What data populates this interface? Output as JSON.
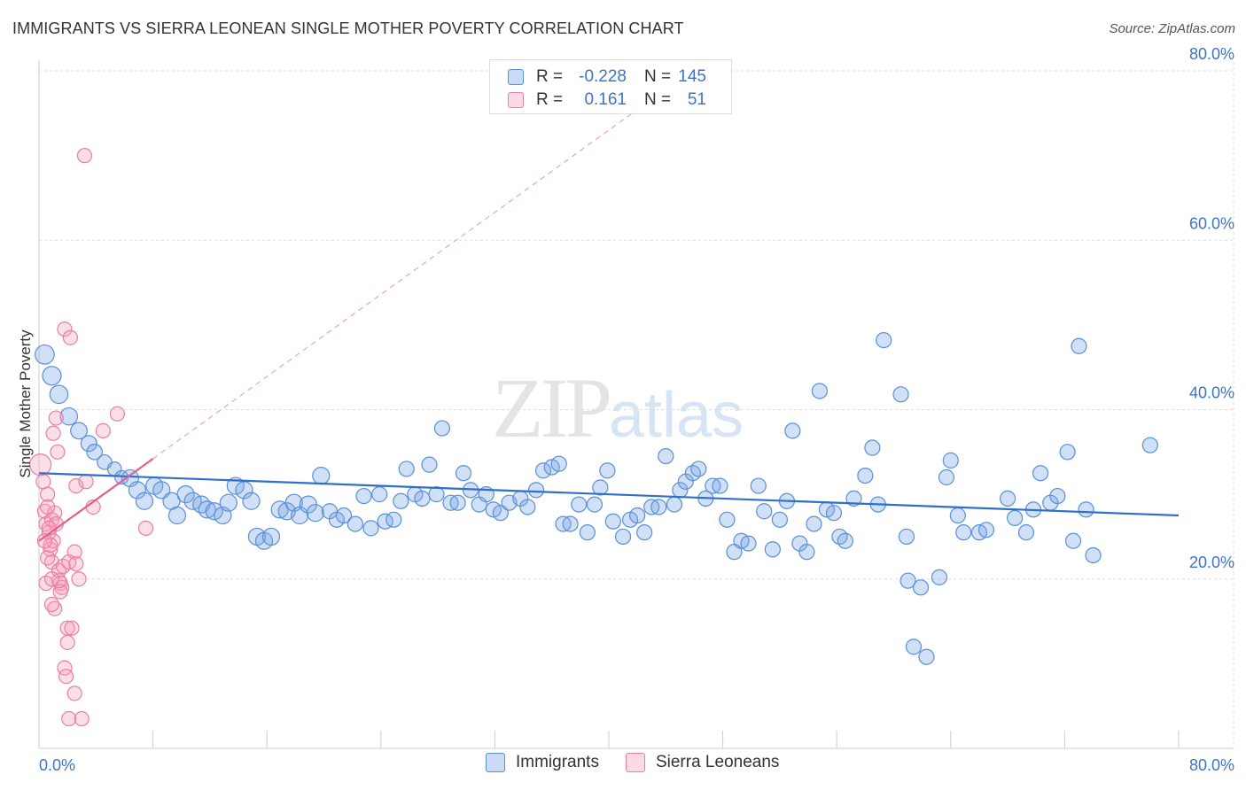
{
  "title": "IMMIGRANTS VS SIERRA LEONEAN SINGLE MOTHER POVERTY CORRELATION CHART",
  "source": "Source: ZipAtlas.com",
  "watermark": {
    "zip": "ZIP",
    "atlas": "atlas"
  },
  "colors": {
    "blue_fill": "rgba(120,165,230,0.35)",
    "blue_stroke": "#5b8fd6",
    "blue_line": "#2f6fcc",
    "pink_fill": "rgba(245,160,190,0.35)",
    "pink_stroke": "#e87fa2",
    "pink_line": "#e0608a",
    "grid": "#dddddd",
    "axis_text": "#3d74c9"
  },
  "legend": {
    "rows": [
      {
        "label": "R =",
        "r": "-0.228",
        "n_label": "N =",
        "n": "145",
        "series": "blue"
      },
      {
        "label": "R =",
        "r": "0.161",
        "n_label": "N =",
        "n": "51",
        "series": "pink"
      }
    ]
  },
  "bottom_legend": [
    {
      "label": "Immigrants",
      "series": "blue"
    },
    {
      "label": "Sierra Leoneans",
      "series": "pink"
    }
  ],
  "chart_data": {
    "type": "scatter",
    "title": "IMMIGRANTS VS SIERRA LEONEAN SINGLE MOTHER POVERTY CORRELATION CHART",
    "xlabel": "",
    "ylabel": "Single Mother Poverty",
    "xlim": [
      0,
      80
    ],
    "ylim": [
      0,
      80
    ],
    "x_tick_labels": [
      "0.0%",
      "80.0%"
    ],
    "y_ticks": [
      20,
      40,
      60,
      80
    ],
    "y_tick_labels": [
      "20.0%",
      "40.0%",
      "60.0%",
      "80.0%"
    ],
    "grid": true,
    "legend_position": "top-center",
    "series": [
      {
        "name": "Immigrants",
        "color": "blue",
        "R": -0.228,
        "N": 145,
        "trend": {
          "x": [
            0,
            80
          ],
          "y": [
            32.5,
            27.5
          ]
        },
        "points": [
          [
            0.4,
            46.5
          ],
          [
            0.9,
            44
          ],
          [
            1.4,
            41.8
          ],
          [
            2.1,
            39.2
          ],
          [
            2.8,
            37.5
          ],
          [
            3.5,
            36
          ],
          [
            3.9,
            35
          ],
          [
            4.6,
            33.8
          ],
          [
            5.3,
            33
          ],
          [
            5.8,
            32
          ],
          [
            6.4,
            31.9
          ],
          [
            6.9,
            30.5
          ],
          [
            7.4,
            29.2
          ],
          [
            8.1,
            31
          ],
          [
            8.6,
            30.5
          ],
          [
            9.3,
            29.2
          ],
          [
            9.7,
            27.5
          ],
          [
            10.3,
            30
          ],
          [
            10.8,
            29.2
          ],
          [
            11.4,
            28.8
          ],
          [
            11.8,
            28.2
          ],
          [
            12.3,
            28
          ],
          [
            12.9,
            27.5
          ],
          [
            13.3,
            29
          ],
          [
            13.8,
            31
          ],
          [
            14.4,
            30.5
          ],
          [
            14.9,
            29.2
          ],
          [
            15.3,
            25
          ],
          [
            15.8,
            24.5
          ],
          [
            16.3,
            25
          ],
          [
            16.9,
            28.2
          ],
          [
            17.4,
            28
          ],
          [
            17.9,
            29
          ],
          [
            18.3,
            27.5
          ],
          [
            18.9,
            28.8
          ],
          [
            19.4,
            27.8
          ],
          [
            19.8,
            32.2
          ],
          [
            20.4,
            28
          ],
          [
            20.9,
            27
          ],
          [
            21.4,
            27.5
          ],
          [
            22.2,
            26.5
          ],
          [
            22.8,
            29.8
          ],
          [
            23.3,
            26
          ],
          [
            23.9,
            30
          ],
          [
            24.3,
            26.8
          ],
          [
            24.9,
            27
          ],
          [
            25.4,
            29.2
          ],
          [
            25.8,
            33
          ],
          [
            26.4,
            30
          ],
          [
            26.9,
            29.5
          ],
          [
            27.4,
            33.5
          ],
          [
            27.9,
            30
          ],
          [
            28.3,
            37.8
          ],
          [
            28.9,
            29
          ],
          [
            29.4,
            29
          ],
          [
            29.8,
            32.5
          ],
          [
            30.3,
            30.5
          ],
          [
            30.9,
            28.8
          ],
          [
            31.4,
            30
          ],
          [
            31.9,
            28.2
          ],
          [
            32.4,
            27.8
          ],
          [
            33,
            29
          ],
          [
            33.8,
            29.5
          ],
          [
            34.3,
            28.5
          ],
          [
            34.9,
            30.5
          ],
          [
            35.4,
            32.8
          ],
          [
            36,
            33.2
          ],
          [
            36.5,
            33.6
          ],
          [
            36.8,
            26.5
          ],
          [
            37.3,
            26.5
          ],
          [
            37.9,
            28.8
          ],
          [
            38.5,
            25.5
          ],
          [
            39,
            28.8
          ],
          [
            39.4,
            30.8
          ],
          [
            39.9,
            32.8
          ],
          [
            40.3,
            26.8
          ],
          [
            41,
            25
          ],
          [
            41.5,
            27
          ],
          [
            42,
            27.5
          ],
          [
            42.5,
            25.5
          ],
          [
            43,
            28.5
          ],
          [
            43.5,
            28.5
          ],
          [
            44,
            34.5
          ],
          [
            44.6,
            28.8
          ],
          [
            45,
            30.5
          ],
          [
            45.4,
            31.5
          ],
          [
            45.9,
            32.5
          ],
          [
            46.3,
            33
          ],
          [
            46.8,
            29.5
          ],
          [
            47.3,
            31
          ],
          [
            47.8,
            31
          ],
          [
            48.3,
            27
          ],
          [
            48.8,
            23.2
          ],
          [
            49.3,
            24.5
          ],
          [
            49.8,
            24.2
          ],
          [
            50.5,
            31
          ],
          [
            50.9,
            28
          ],
          [
            51.5,
            23.5
          ],
          [
            52,
            27
          ],
          [
            52.5,
            29.2
          ],
          [
            52.9,
            37.5
          ],
          [
            53.4,
            24.2
          ],
          [
            53.9,
            23.2
          ],
          [
            54.4,
            26.5
          ],
          [
            54.8,
            42.2
          ],
          [
            55.3,
            28.2
          ],
          [
            55.8,
            27.8
          ],
          [
            56.2,
            25
          ],
          [
            56.6,
            24.5
          ],
          [
            57.2,
            29.5
          ],
          [
            58,
            32.2
          ],
          [
            58.5,
            35.5
          ],
          [
            58.9,
            28.8
          ],
          [
            59.3,
            48.2
          ],
          [
            60.5,
            41.8
          ],
          [
            60.9,
            25
          ],
          [
            61,
            19.8
          ],
          [
            61.4,
            12
          ],
          [
            61.9,
            19
          ],
          [
            62.3,
            10.8
          ],
          [
            63.2,
            20.2
          ],
          [
            63.7,
            32
          ],
          [
            64,
            34
          ],
          [
            64.5,
            27.5
          ],
          [
            64.9,
            25.5
          ],
          [
            66,
            25.5
          ],
          [
            66.5,
            25.8
          ],
          [
            68,
            29.5
          ],
          [
            68.5,
            27.2
          ],
          [
            69.3,
            25.5
          ],
          [
            69.8,
            28.2
          ],
          [
            70.3,
            32.5
          ],
          [
            71,
            29
          ],
          [
            71.5,
            29.8
          ],
          [
            72.2,
            35
          ],
          [
            72.6,
            24.5
          ],
          [
            73.5,
            28.2
          ],
          [
            73,
            47.5
          ],
          [
            74,
            22.8
          ],
          [
            78,
            35.8
          ]
        ]
      },
      {
        "name": "Sierra Leoneans",
        "color": "pink",
        "R": 0.161,
        "N": 51,
        "trend": {
          "x": [
            0,
            8
          ],
          "y": [
            24.5,
            34.2
          ]
        },
        "points": [
          [
            0.1,
            33.5
          ],
          [
            0.3,
            31.5
          ],
          [
            0.4,
            28
          ],
          [
            0.5,
            26.5
          ],
          [
            0.6,
            30
          ],
          [
            0.7,
            25.5
          ],
          [
            0.8,
            23.5
          ],
          [
            0.9,
            22
          ],
          [
            0.5,
            19.5
          ],
          [
            0.6,
            22.5
          ],
          [
            0.9,
            27
          ],
          [
            1,
            24.5
          ],
          [
            1.1,
            27.8
          ],
          [
            1.2,
            26.5
          ],
          [
            1.3,
            35
          ],
          [
            1.4,
            21
          ],
          [
            1.5,
            19.5
          ],
          [
            1.6,
            19
          ],
          [
            1.2,
            39
          ],
          [
            1.7,
            21.5
          ],
          [
            1.8,
            49.5
          ],
          [
            2,
            14.2
          ],
          [
            2.1,
            22
          ],
          [
            2.2,
            48.5
          ],
          [
            2.5,
            23.2
          ],
          [
            2.6,
            21.8
          ],
          [
            2.8,
            20
          ],
          [
            2,
            12.5
          ],
          [
            2.5,
            6.5
          ],
          [
            1.8,
            9.5
          ],
          [
            1.5,
            18.5
          ],
          [
            1.1,
            16.5
          ],
          [
            0.9,
            17
          ],
          [
            0.8,
            24
          ],
          [
            0.6,
            28.5
          ],
          [
            0.7,
            26
          ],
          [
            1,
            37.2
          ],
          [
            1.9,
            8.5
          ],
          [
            2.1,
            3.5
          ],
          [
            3,
            3.5
          ],
          [
            3.2,
            70
          ],
          [
            2.6,
            31
          ],
          [
            3.3,
            31.5
          ],
          [
            3.8,
            28.5
          ],
          [
            4.5,
            37.5
          ],
          [
            5.5,
            39.5
          ],
          [
            7.5,
            26
          ],
          [
            1.4,
            19.8
          ],
          [
            2.3,
            14.2
          ],
          [
            0.9,
            20
          ],
          [
            0.4,
            24.5
          ]
        ]
      }
    ]
  }
}
